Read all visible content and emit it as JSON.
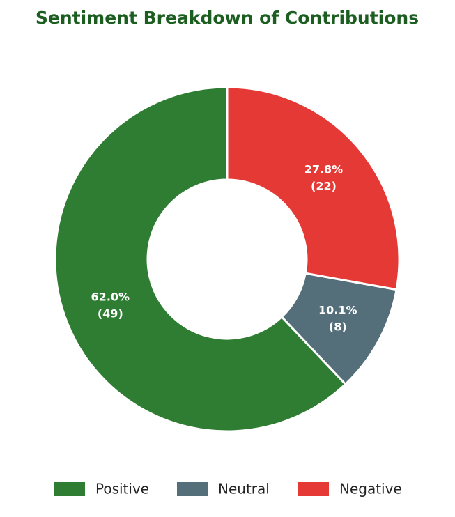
{
  "chart_data": {
    "type": "donut",
    "title": "Sentiment Breakdown of Contributions",
    "categories": [
      "Positive",
      "Neutral",
      "Negative"
    ],
    "values": [
      62.0,
      10.1,
      27.8
    ],
    "value_labels": [
      "62.0%",
      "10.1%",
      "27.8%"
    ],
    "counts": [
      49,
      8,
      22
    ],
    "count_labels": [
      "(49)",
      "(8)",
      "(22)"
    ],
    "colors": [
      "#2e7d32",
      "#546e7a",
      "#e53935"
    ],
    "direction": "counterclockwise",
    "legend": "bottom"
  }
}
